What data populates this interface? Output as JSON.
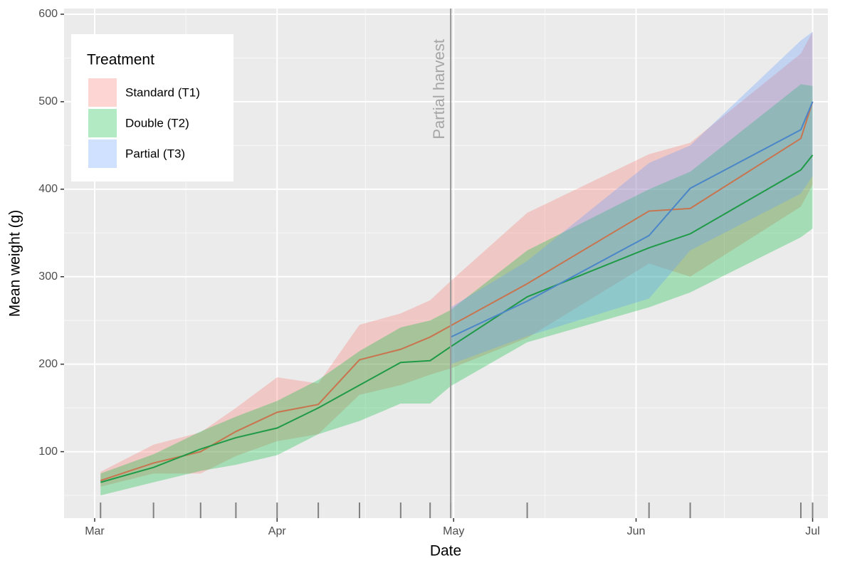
{
  "chart_data": {
    "type": "ribbon_line",
    "x_label": "Date",
    "y_label": "Mean weight (g)",
    "legend_title": "Treatment",
    "legend_position": "top-left",
    "x": [
      1,
      10,
      18,
      24,
      31,
      38,
      45,
      52,
      57,
      60.5,
      73.5,
      94.2,
      101.2,
      120,
      122
    ],
    "series": [
      {
        "name": "Standard (T1)",
        "color": "#F8766D",
        "line_color": "#c8744e",
        "values": [
          67,
          87,
          100,
          123,
          145,
          154,
          205,
          217,
          231,
          244,
          292,
          375,
          378,
          458,
          500
        ],
        "lower": [
          60,
          75,
          75,
          95,
          112,
          120,
          165,
          176,
          188,
          195,
          230,
          315,
          300,
          380,
          405
        ],
        "upper": [
          77,
          108,
          122,
          150,
          185,
          178,
          245,
          258,
          273,
          295,
          373,
          440,
          453,
          555,
          580
        ]
      },
      {
        "name": "Double (T2)",
        "color": "#00BA38",
        "line_color": "#1f9a47",
        "values": [
          65,
          82,
          103,
          116,
          127,
          150,
          176,
          202,
          204,
          220,
          277,
          333,
          349,
          422,
          439
        ],
        "lower": [
          50,
          65,
          78,
          85,
          96,
          120,
          135,
          155,
          155,
          175,
          225,
          265,
          282,
          345,
          355
        ],
        "upper": [
          75,
          97,
          123,
          140,
          158,
          182,
          215,
          242,
          250,
          262,
          330,
          400,
          420,
          520,
          518
        ]
      },
      {
        "name": "Partial (T3)",
        "color": "#619CFF",
        "line_color": "#4a86c8",
        "values": [
          null,
          null,
          null,
          null,
          null,
          null,
          null,
          null,
          null,
          231,
          272,
          347,
          401,
          468,
          500
        ],
        "lower": [
          null,
          null,
          null,
          null,
          null,
          null,
          null,
          null,
          null,
          200,
          232,
          275,
          330,
          395,
          415
        ],
        "upper": [
          null,
          null,
          null,
          null,
          null,
          null,
          null,
          null,
          null,
          265,
          318,
          430,
          450,
          570,
          580
        ]
      }
    ],
    "annotations": [
      {
        "x": 60.5,
        "label": "Partial harvest"
      }
    ],
    "xlim": [
      -5.2,
      124.6
    ],
    "xticks": [
      {
        "value": 0,
        "label": "Mar"
      },
      {
        "value": 31,
        "label": "Apr"
      },
      {
        "value": 61,
        "label": "May"
      },
      {
        "value": 92,
        "label": "Jun"
      },
      {
        "value": 122,
        "label": "Jul"
      }
    ],
    "x_minor_ticks": [
      15.5,
      46,
      76.5,
      107
    ],
    "ylim": [
      24,
      606.5
    ],
    "yticks": [
      100,
      200,
      300,
      400,
      500,
      600
    ],
    "y_minor_ticks": [
      50,
      150,
      250,
      350,
      450,
      550
    ],
    "grid": true
  }
}
